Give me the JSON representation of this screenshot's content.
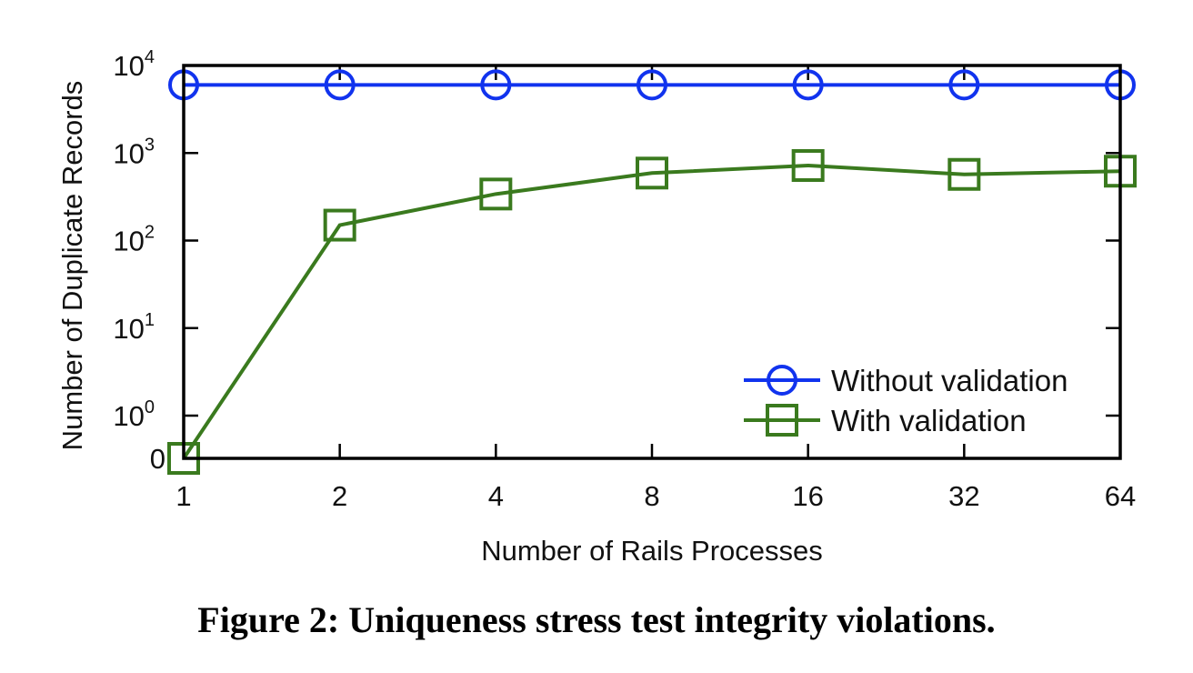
{
  "chart_data": {
    "type": "line",
    "x_scale": "log2",
    "y_scale": "symlog10",
    "x": [
      1,
      2,
      4,
      8,
      16,
      32,
      64
    ],
    "x_tick_labels": [
      "1",
      "2",
      "4",
      "8",
      "16",
      "32",
      "64"
    ],
    "y_ticks": [
      {
        "base": "0",
        "exp": ""
      },
      {
        "base": "10",
        "exp": "0"
      },
      {
        "base": "10",
        "exp": "1"
      },
      {
        "base": "10",
        "exp": "2"
      },
      {
        "base": "10",
        "exp": "3"
      },
      {
        "base": "10",
        "exp": "4"
      }
    ],
    "ylim": [
      0,
      10000
    ],
    "xlabel": "Number of Rails Processes",
    "ylabel": "Number of Duplicate Records",
    "legend_position": "bottom-right",
    "series": [
      {
        "name": "Without validation",
        "values": [
          6000,
          6000,
          6000,
          6000,
          6000,
          6000,
          6000
        ],
        "marker": "circle",
        "color": "#1133ee"
      },
      {
        "name": "With validation",
        "values": [
          0,
          150,
          340,
          590,
          720,
          570,
          620
        ],
        "marker": "square",
        "color": "#3a7a1e"
      }
    ]
  },
  "caption": "Figure 2: Uniqueness stress test integrity violations."
}
